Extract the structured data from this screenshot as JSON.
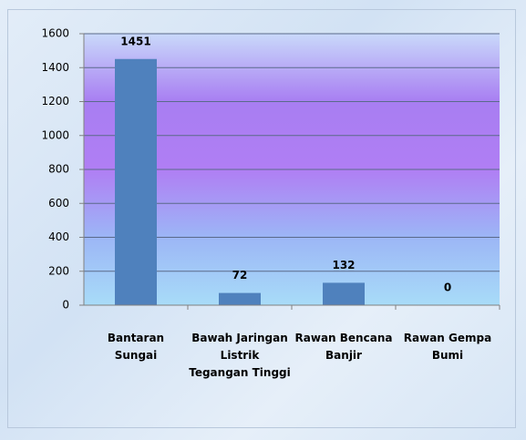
{
  "chart_data": {
    "type": "bar",
    "categories": [
      "Bantaran Sungai",
      "Bawah Jaringan Listrik Tegangan Tinggi",
      "Rawan Bencana Banjir",
      "Rawan Gempa Bumi"
    ],
    "values": [
      1451,
      72,
      132,
      0
    ],
    "color": "#4f81bd",
    "ylim": [
      0,
      1600
    ],
    "yticks": [
      0,
      200,
      400,
      600,
      800,
      1000,
      1200,
      1400,
      1600
    ],
    "grid": true
  }
}
